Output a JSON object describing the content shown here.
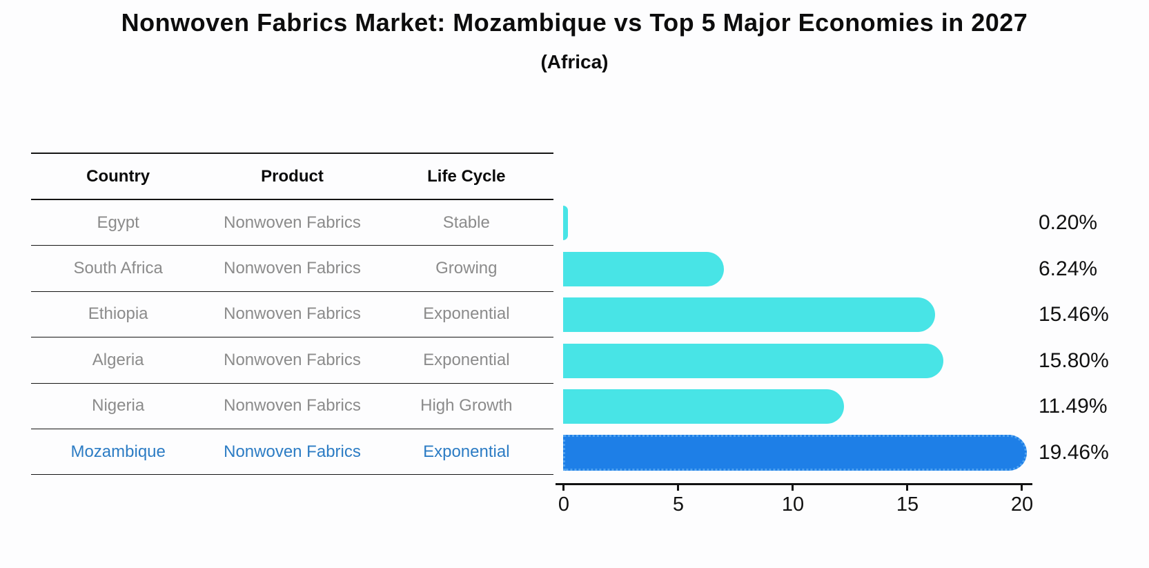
{
  "header": {
    "title": "Nonwoven Fabrics Market: Mozambique vs Top 5 Major Economies in 2027",
    "subtitle": "(Africa)"
  },
  "table": {
    "columns": [
      "Country",
      "Product",
      "Life Cycle"
    ],
    "rows": [
      {
        "country": "Egypt",
        "product": "Nonwoven Fabrics",
        "life_cycle": "Stable"
      },
      {
        "country": "South Africa",
        "product": "Nonwoven Fabrics",
        "life_cycle": "Growing"
      },
      {
        "country": "Ethiopia",
        "product": "Nonwoven Fabrics",
        "life_cycle": "Exponential"
      },
      {
        "country": "Algeria",
        "product": "Nonwoven Fabrics",
        "life_cycle": "Exponential"
      },
      {
        "country": "Nigeria",
        "product": "Nonwoven Fabrics",
        "life_cycle": "High Growth"
      },
      {
        "country": "Mozambique",
        "product": "Nonwoven Fabrics",
        "life_cycle": "Exponential"
      }
    ]
  },
  "chart_data": {
    "type": "bar",
    "orientation": "horizontal",
    "title": "Nonwoven Fabrics Market: Mozambique vs Top 5 Major Economies in 2027",
    "subtitle": "(Africa)",
    "categories": [
      "Egypt",
      "South Africa",
      "Ethiopia",
      "Algeria",
      "Nigeria",
      "Mozambique"
    ],
    "values": [
      0.2,
      6.24,
      15.46,
      15.8,
      11.49,
      19.46
    ],
    "value_labels": [
      "0.20%",
      "6.24%",
      "15.46%",
      "15.80%",
      "11.49%",
      "19.46%"
    ],
    "xlim": [
      0,
      20
    ],
    "x_ticks": [
      "0",
      "5",
      "10",
      "15",
      "20"
    ],
    "grid": false,
    "legend": false,
    "highlight_index": 5,
    "bar_color": "#48e4e6",
    "highlight_bar_color": "#1e7fe7",
    "highlight_edge_color": "#51a3f0",
    "highlight_text_color": "#2c7cc4",
    "table_text_color": "#8b8b8b"
  }
}
